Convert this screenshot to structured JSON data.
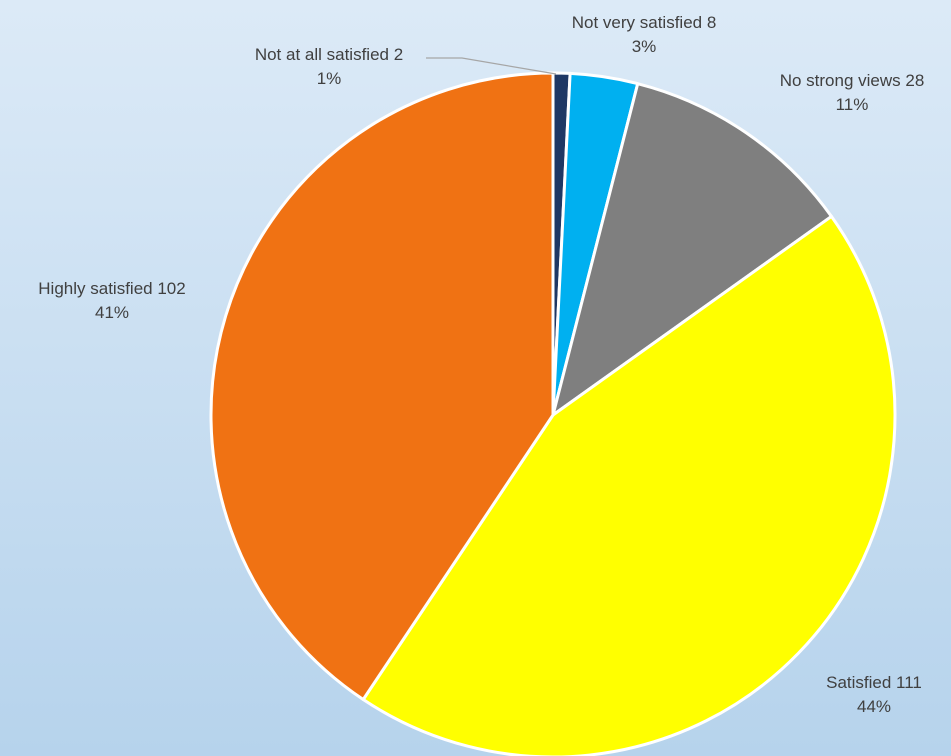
{
  "chart_data": {
    "type": "pie",
    "slices": [
      {
        "label": "Not at all satisfied",
        "value": 2,
        "percent": "1%",
        "color": "#1f3864"
      },
      {
        "label": "Not very satisfied",
        "value": 8,
        "percent": "3%",
        "color": "#00b0f0"
      },
      {
        "label": "No strong views",
        "value": 28,
        "percent": "11%",
        "color": "#7f7f7f"
      },
      {
        "label": "Satisfied",
        "value": 111,
        "percent": "44%",
        "color": "#ffff00"
      },
      {
        "label": "Highly satisfied",
        "value": 102,
        "percent": "41%",
        "color": "#f07213"
      }
    ],
    "start_angle": "12 o'clock",
    "direction": "clockwise",
    "legend": "none"
  }
}
